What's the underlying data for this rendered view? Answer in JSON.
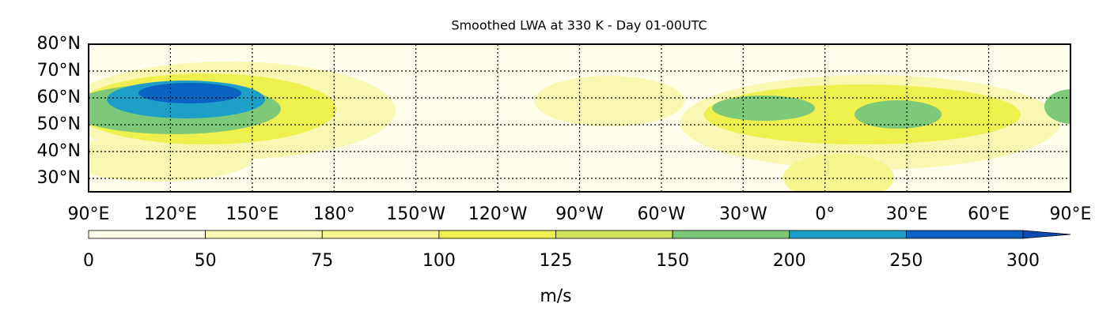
{
  "chart_data": {
    "type": "map",
    "title": "Smoothed LWA at 330 K - Day 01-00UTC",
    "ylim": [
      25,
      80
    ],
    "yticks": [
      {
        "value": 30,
        "label": "30°N"
      },
      {
        "value": 40,
        "label": "40°N"
      },
      {
        "value": 50,
        "label": "50°N"
      },
      {
        "value": 60,
        "label": "60°N"
      },
      {
        "value": 70,
        "label": "70°N"
      },
      {
        "value": 80,
        "label": "80°N"
      }
    ],
    "xlim": [
      90,
      450
    ],
    "xticks": [
      {
        "value": 90,
        "label": "90°E"
      },
      {
        "value": 120,
        "label": "120°E"
      },
      {
        "value": 150,
        "label": "150°E"
      },
      {
        "value": 180,
        "label": "180°"
      },
      {
        "value": 210,
        "label": "150°W"
      },
      {
        "value": 240,
        "label": "120°W"
      },
      {
        "value": 270,
        "label": "90°W"
      },
      {
        "value": 300,
        "label": "60°W"
      },
      {
        "value": 330,
        "label": "30°W"
      },
      {
        "value": 360,
        "label": "0°"
      },
      {
        "value": 390,
        "label": "30°E"
      },
      {
        "value": 420,
        "label": "60°E"
      },
      {
        "value": 450,
        "label": "90°E"
      }
    ],
    "grid": true,
    "colorbar": {
      "levels": [
        0,
        50,
        75,
        100,
        125,
        150,
        200,
        250,
        300
      ],
      "colors": [
        "#fefeea",
        "#f8f8b2",
        "#f6f68e",
        "#eef04e",
        "#cfe25a",
        "#7ec87a",
        "#1e9fc8",
        "#0a62c2"
      ],
      "extend_color": "#0a4ab2",
      "label": "m/s"
    }
  }
}
